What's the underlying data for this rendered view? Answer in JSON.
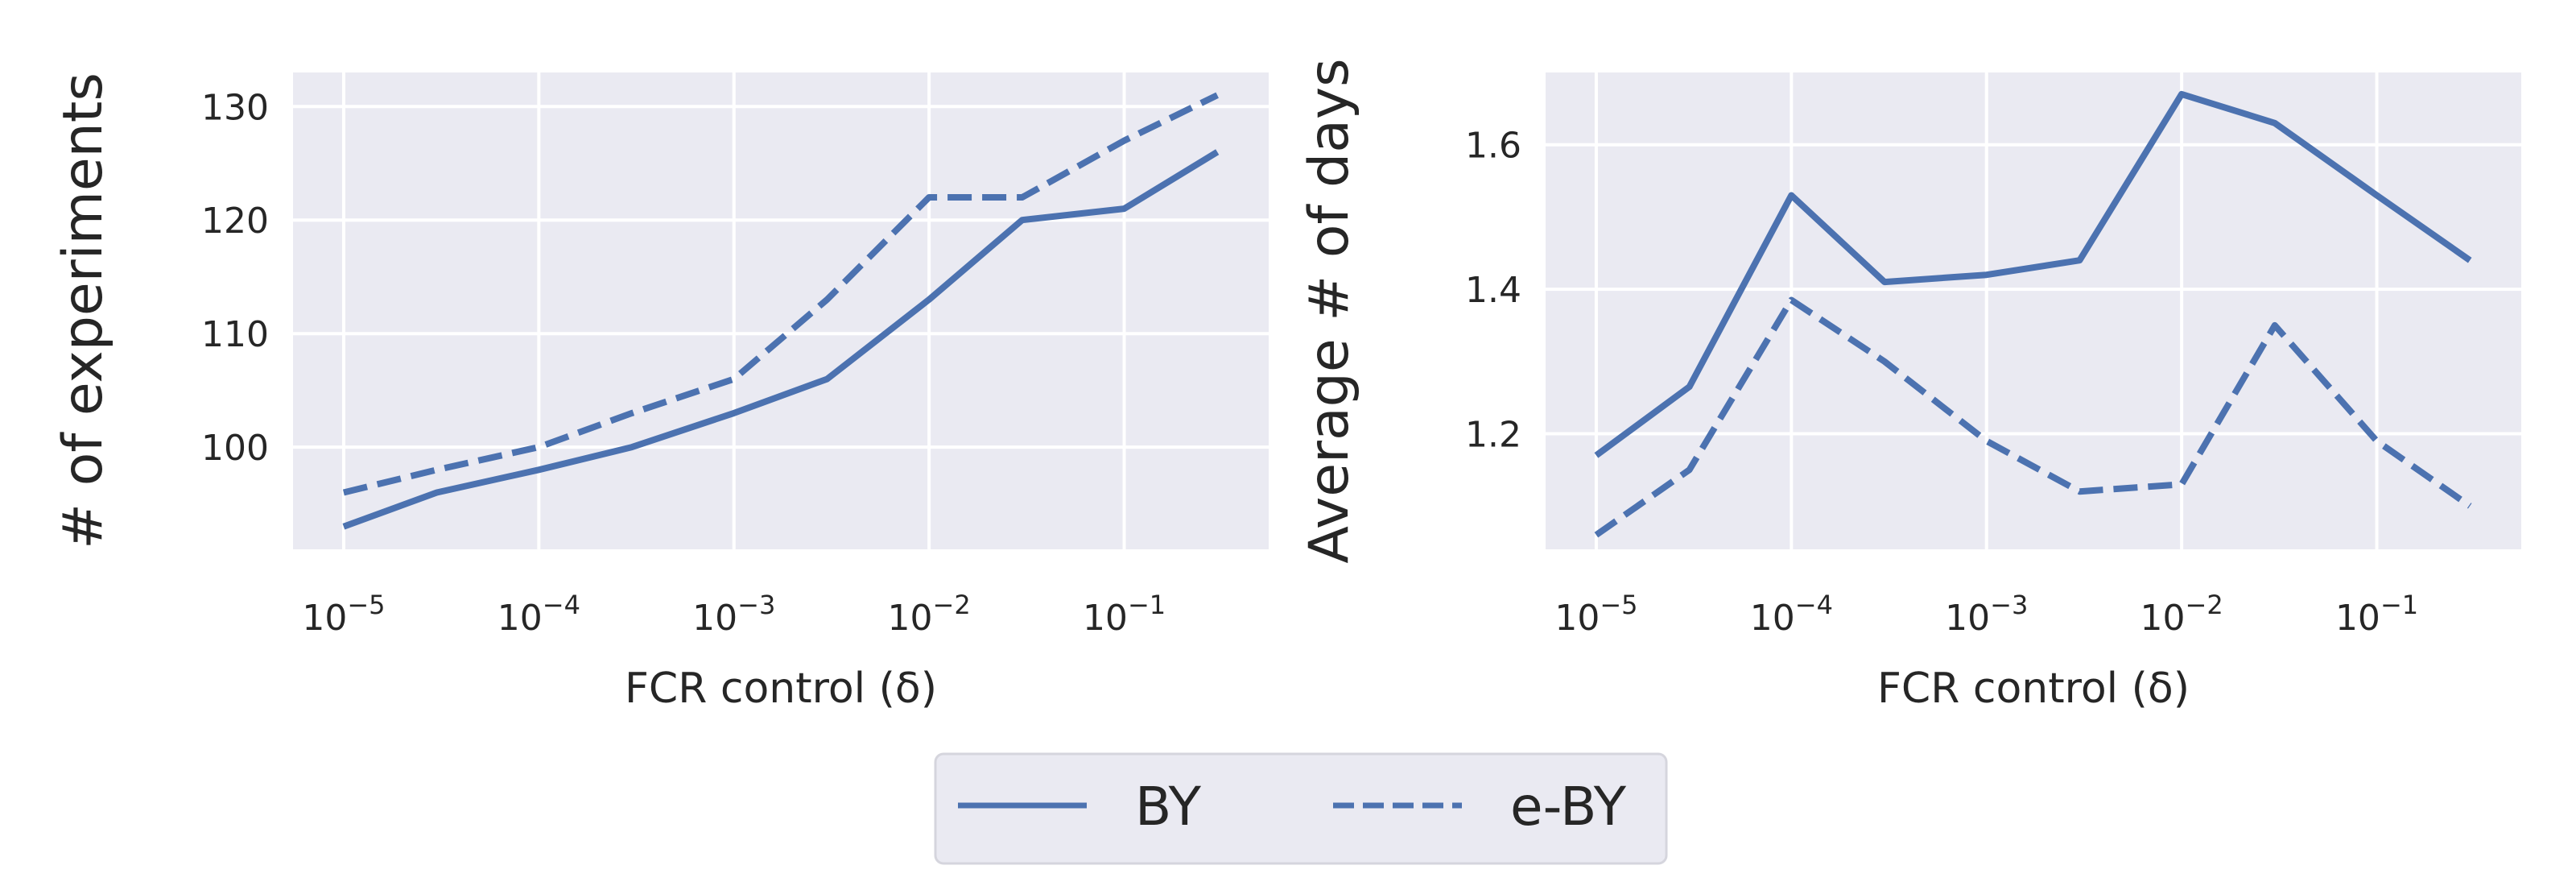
{
  "colors": {
    "series": "#4c72b0",
    "panel_bg": "#eaeaf2",
    "grid": "#ffffff",
    "text": "#262626"
  },
  "chart_data": [
    {
      "type": "line",
      "xlabel": "FCR control (δ)",
      "ylabel": "# of experiments",
      "xscale": "log",
      "xlim": [
        5.5e-06,
        0.55
      ],
      "ylim": [
        91,
        133
      ],
      "x_ticks": [
        1e-05,
        0.0001,
        0.001,
        0.01,
        0.1
      ],
      "x_tick_exponents": [
        "−5",
        "−4",
        "−3",
        "−2",
        "−1"
      ],
      "y_ticks": [
        100,
        110,
        120,
        130
      ],
      "grid": true,
      "x": [
        1e-05,
        3e-05,
        0.0001,
        0.0003,
        0.001,
        0.003,
        0.01,
        0.03,
        0.1,
        0.3
      ],
      "series": [
        {
          "name": "BY",
          "style": "solid",
          "values": [
            93,
            96,
            98,
            100,
            103,
            106,
            113,
            120,
            121,
            126
          ]
        },
        {
          "name": "e-BY",
          "style": "dashed",
          "values": [
            96,
            98,
            100,
            103,
            106,
            113,
            122,
            122,
            127,
            131
          ]
        }
      ]
    },
    {
      "type": "line",
      "xlabel": "FCR control (δ)",
      "ylabel": "Average # of days",
      "xscale": "log",
      "xlim": [
        5.5e-06,
        0.55
      ],
      "ylim": [
        1.04,
        1.7
      ],
      "x_ticks": [
        1e-05,
        0.0001,
        0.001,
        0.01,
        0.1
      ],
      "x_tick_exponents": [
        "−5",
        "−4",
        "−3",
        "−2",
        "−1"
      ],
      "y_ticks": [
        1.2,
        1.4,
        1.6
      ],
      "y_tick_labels": [
        "1.2",
        "1.4",
        "1.6"
      ],
      "grid": true,
      "x": [
        1e-05,
        3e-05,
        0.0001,
        0.0003,
        0.001,
        0.003,
        0.01,
        0.03,
        0.1,
        0.3
      ],
      "series": [
        {
          "name": "BY",
          "style": "solid",
          "values": [
            1.17,
            1.265,
            1.53,
            1.41,
            1.42,
            1.44,
            1.67,
            1.63,
            1.53,
            1.44
          ]
        },
        {
          "name": "e-BY",
          "style": "dashed",
          "values": [
            1.06,
            1.15,
            1.385,
            1.3,
            1.19,
            1.12,
            1.13,
            1.35,
            1.19,
            1.1
          ]
        }
      ]
    }
  ],
  "legend": {
    "placement": "bottom-center",
    "items": [
      "BY",
      "e-BY"
    ]
  }
}
